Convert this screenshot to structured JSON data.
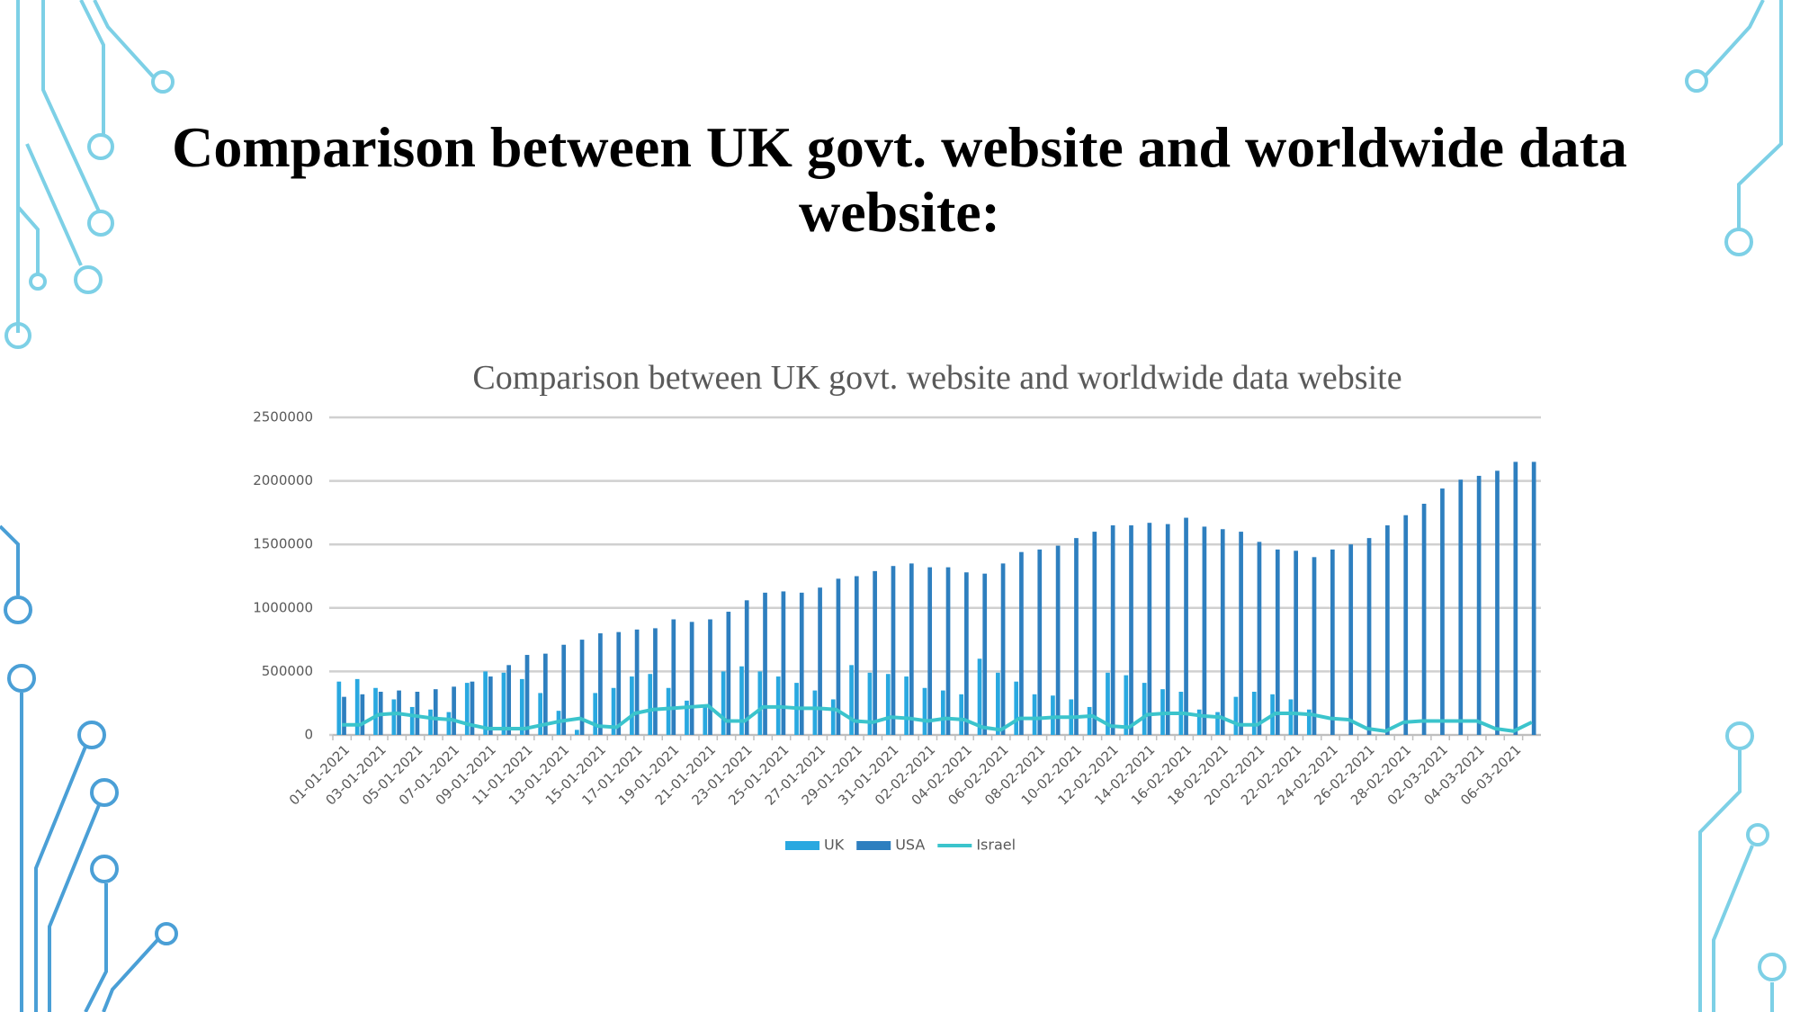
{
  "slide_title": "Comparison between UK govt. website and worldwide data website:",
  "chart_data": {
    "type": "bar",
    "title": "Comparison between UK govt. website and worldwide data website",
    "categories": [
      "01-01-2021",
      null,
      "03-01-2021",
      null,
      "05-01-2021",
      null,
      "07-01-2021",
      null,
      "09-01-2021",
      null,
      "11-01-2021",
      null,
      "13-01-2021",
      null,
      "15-01-2021",
      null,
      "17-01-2021",
      null,
      "19-01-2021",
      null,
      "21-01-2021",
      null,
      "23-01-2021",
      null,
      "25-01-2021",
      null,
      "27-01-2021",
      null,
      "29-01-2021",
      null,
      "31-01-2021",
      null,
      "02-02-2021",
      null,
      "04-02-2021",
      null,
      "06-02-2021",
      null,
      "08-02-2021",
      null,
      "10-02-2021",
      null,
      "12-02-2021",
      null,
      "14-02-2021",
      null,
      "16-02-2021",
      null,
      "18-02-2021",
      null,
      "20-02-2021",
      null,
      "22-02-2021",
      null,
      "24-02-2021",
      null,
      "26-02-2021",
      null,
      "28-02-2021",
      null,
      "02-03-2021",
      null,
      "04-03-2021",
      null,
      "06-03-2021",
      null
    ],
    "series": [
      {
        "name": "UK",
        "color": "#29a8e0",
        "type": "bar",
        "values": [
          420000,
          440000,
          370000,
          280000,
          220000,
          200000,
          180000,
          410000,
          500000,
          490000,
          440000,
          330000,
          190000,
          40000,
          330000,
          370000,
          460000,
          480000,
          370000,
          270000,
          230000,
          500000,
          540000,
          500000,
          460000,
          410000,
          350000,
          280000,
          550000,
          490000,
          480000,
          460000,
          370000,
          350000,
          320000,
          600000,
          490000,
          420000,
          320000,
          310000,
          280000,
          220000,
          490000,
          470000,
          410000,
          360000,
          340000,
          200000,
          180000,
          300000,
          340000,
          320000,
          280000,
          200000,
          null,
          null,
          null,
          null,
          null,
          null,
          null,
          null,
          null,
          null,
          null,
          null
        ]
      },
      {
        "name": "USA",
        "color": "#2e7fbf",
        "type": "bar",
        "values": [
          300000,
          320000,
          340000,
          350000,
          340000,
          360000,
          380000,
          420000,
          460000,
          550000,
          630000,
          640000,
          710000,
          750000,
          800000,
          810000,
          830000,
          840000,
          910000,
          890000,
          910000,
          970000,
          1060000,
          1120000,
          1130000,
          1120000,
          1160000,
          1230000,
          1250000,
          1290000,
          1330000,
          1350000,
          1320000,
          1320000,
          1280000,
          1270000,
          1350000,
          1440000,
          1460000,
          1490000,
          1550000,
          1600000,
          1650000,
          1650000,
          1670000,
          1660000,
          1710000,
          1640000,
          1620000,
          1600000,
          1520000,
          1460000,
          1450000,
          1400000,
          1460000,
          1500000,
          1550000,
          1650000,
          1730000,
          1820000,
          1940000,
          2010000,
          2040000,
          2080000,
          2150000,
          2150000
        ]
      },
      {
        "name": "Israel",
        "color": "#3bc4cc",
        "type": "line",
        "values": [
          80000,
          80000,
          160000,
          170000,
          150000,
          130000,
          120000,
          80000,
          50000,
          50000,
          50000,
          80000,
          110000,
          130000,
          70000,
          60000,
          170000,
          200000,
          210000,
          220000,
          230000,
          110000,
          110000,
          220000,
          220000,
          210000,
          210000,
          200000,
          110000,
          100000,
          140000,
          130000,
          110000,
          130000,
          120000,
          60000,
          40000,
          130000,
          130000,
          140000,
          140000,
          150000,
          70000,
          60000,
          160000,
          170000,
          170000,
          150000,
          140000,
          80000,
          80000,
          170000,
          170000,
          160000,
          130000,
          120000,
          50000,
          30000,
          100000,
          110000,
          110000,
          110000,
          110000,
          50000,
          30000,
          100000
        ]
      }
    ],
    "ylim": [
      0,
      2500000
    ],
    "yticks": [
      0,
      500000,
      1000000,
      1500000,
      2000000,
      2500000
    ],
    "grid": true,
    "legend": "bottom"
  }
}
